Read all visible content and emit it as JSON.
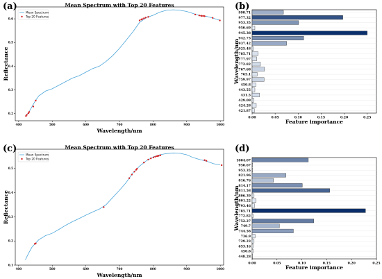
{
  "panels": {
    "a": "(a)",
    "b": "(b)",
    "c": "(c)",
    "d": "(d)"
  },
  "colors": {
    "spectrum": "#4da6d9",
    "top": "#d62728",
    "bar_scale": [
      "#eef4fb",
      "#0b2f6b"
    ]
  },
  "chart_data": [
    {
      "id": "a",
      "type": "line",
      "title": "Mean Spectrum with Top 20 Features",
      "xlabel": "Wavelength/nm",
      "ylabel": "Reflectance",
      "xlim": [
        390,
        1010
      ],
      "ylim": [
        0.17,
        0.65
      ],
      "xticks": [
        400,
        500,
        600,
        700,
        800,
        900,
        1000
      ],
      "yticks": [
        0.2,
        0.3,
        0.4,
        0.5,
        0.6
      ],
      "legend": [
        "Mean Spectrum",
        "Top 20 Features"
      ],
      "legend_position": "top-left",
      "series": [
        {
          "name": "Mean Spectrum",
          "x": [
            420,
            430,
            440,
            450,
            460,
            480,
            500,
            520,
            540,
            560,
            580,
            600,
            620,
            640,
            660,
            680,
            700,
            720,
            740,
            760,
            780,
            800,
            820,
            840,
            860,
            880,
            900,
            920,
            940,
            950,
            960,
            980,
            1000
          ],
          "y": [
            0.19,
            0.205,
            0.23,
            0.255,
            0.275,
            0.295,
            0.305,
            0.32,
            0.335,
            0.35,
            0.36,
            0.375,
            0.39,
            0.4,
            0.42,
            0.445,
            0.475,
            0.51,
            0.545,
            0.585,
            0.605,
            0.615,
            0.628,
            0.636,
            0.638,
            0.636,
            0.631,
            0.622,
            0.613,
            0.612,
            0.61,
            0.602,
            0.593
          ]
        },
        {
          "name": "Top 20 Features",
          "x": [
            421.87,
            424.28,
            429.09,
            431.5,
            443.55,
            450.8,
            759.97,
            765.1,
            767.68,
            772.82,
            777.97,
            785.71,
            925.48,
            937.42,
            942.73,
            945.38,
            950.69,
            953.35,
            977.32,
            998.71
          ],
          "y": [
            0.19,
            0.195,
            0.202,
            0.207,
            0.23,
            0.255,
            0.593,
            0.597,
            0.599,
            0.602,
            0.605,
            0.608,
            0.618,
            0.614,
            0.613,
            0.612,
            0.612,
            0.611,
            0.604,
            0.593
          ]
        }
      ]
    },
    {
      "id": "b",
      "type": "bar",
      "orientation": "horizontal",
      "xlabel": "Feature importance",
      "ylabel": "Wavelength/nm",
      "xlim": [
        0,
        0.27
      ],
      "xticks": [
        0.0,
        0.05,
        0.1,
        0.15,
        0.2,
        0.25
      ],
      "categories": [
        "998.71",
        "977.32",
        "953.35",
        "950.69",
        "945.38",
        "942.73",
        "937.42",
        "925.48",
        "785.71",
        "777.97",
        "772.82",
        "767.68",
        "765.1",
        "759.97",
        "450.8",
        "443.55",
        "431.5",
        "429.09",
        "424.28",
        "421.87"
      ],
      "values": [
        0.068,
        0.197,
        0.101,
        0.006,
        0.25,
        0.112,
        0.075,
        0.003,
        0.013,
        0.01,
        0.018,
        0.027,
        0.011,
        0.026,
        0.008,
        0.006,
        0.016,
        0.004,
        0.009,
        0.005
      ]
    },
    {
      "id": "c",
      "type": "line",
      "title": "Mean Spectrum with Top 20 Features",
      "xlabel": "Wavelength/nm",
      "ylabel": "Reflectance",
      "xlim": [
        390,
        1010
      ],
      "ylim": [
        0.1,
        0.58
      ],
      "xticks": [
        400,
        500,
        600,
        700,
        800,
        900,
        1000
      ],
      "yticks": [
        0.1,
        0.2,
        0.3,
        0.4,
        0.5
      ],
      "legend": [
        "Mean Spectrum",
        "Top 20 Features"
      ],
      "legend_position": "top-left",
      "series": [
        {
          "name": "Mean Spectrum",
          "x": [
            420,
            430,
            440,
            450,
            460,
            480,
            500,
            520,
            540,
            560,
            580,
            600,
            620,
            640,
            660,
            680,
            700,
            720,
            740,
            760,
            780,
            800,
            820,
            840,
            860,
            880,
            900,
            920,
            940,
            960,
            980,
            1000
          ],
          "y": [
            0.122,
            0.15,
            0.175,
            0.19,
            0.205,
            0.222,
            0.232,
            0.248,
            0.265,
            0.28,
            0.293,
            0.307,
            0.32,
            0.332,
            0.35,
            0.38,
            0.41,
            0.442,
            0.482,
            0.51,
            0.532,
            0.548,
            0.557,
            0.562,
            0.564,
            0.563,
            0.557,
            0.545,
            0.537,
            0.53,
            0.52,
            0.515
          ]
        },
        {
          "name": "Top 20 Features",
          "x": [
            448.28,
            450.8,
            653.16,
            729.23,
            736.9,
            744.58,
            749.7,
            752.27,
            772.82,
            785.71,
            793.46,
            801.22,
            806.39,
            811.58,
            814.17,
            816.76,
            821.96,
            953.35,
            958.67,
            1004.07
          ],
          "y": [
            0.188,
            0.19,
            0.34,
            0.46,
            0.475,
            0.487,
            0.495,
            0.499,
            0.525,
            0.537,
            0.542,
            0.546,
            0.549,
            0.551,
            0.552,
            0.553,
            0.555,
            0.535,
            0.532,
            0.514
          ]
        }
      ]
    },
    {
      "id": "d",
      "type": "bar",
      "orientation": "horizontal",
      "xlabel": "Feature importance",
      "ylabel": "Wavelength/nm",
      "xlim": [
        0,
        0.25
      ],
      "xticks": [
        0.0,
        0.05,
        0.1,
        0.15,
        0.2,
        0.25
      ],
      "categories": [
        "1004.07",
        "958.67",
        "953.35",
        "821.96",
        "816.76",
        "814.17",
        "811.58",
        "806.39",
        "801.22",
        "793.46",
        "785.71",
        "772.82",
        "752.27",
        "749.7",
        "744.58",
        "736.9",
        "729.23",
        "653.16",
        "450.8",
        "448.28"
      ],
      "values": [
        0.113,
        0.001,
        0.001,
        0.068,
        0.043,
        0.101,
        0.156,
        0.004,
        0.008,
        0.005,
        0.228,
        0.002,
        0.124,
        0.055,
        0.083,
        0.006,
        0.004,
        0.002,
        0.002,
        0.001
      ]
    }
  ]
}
